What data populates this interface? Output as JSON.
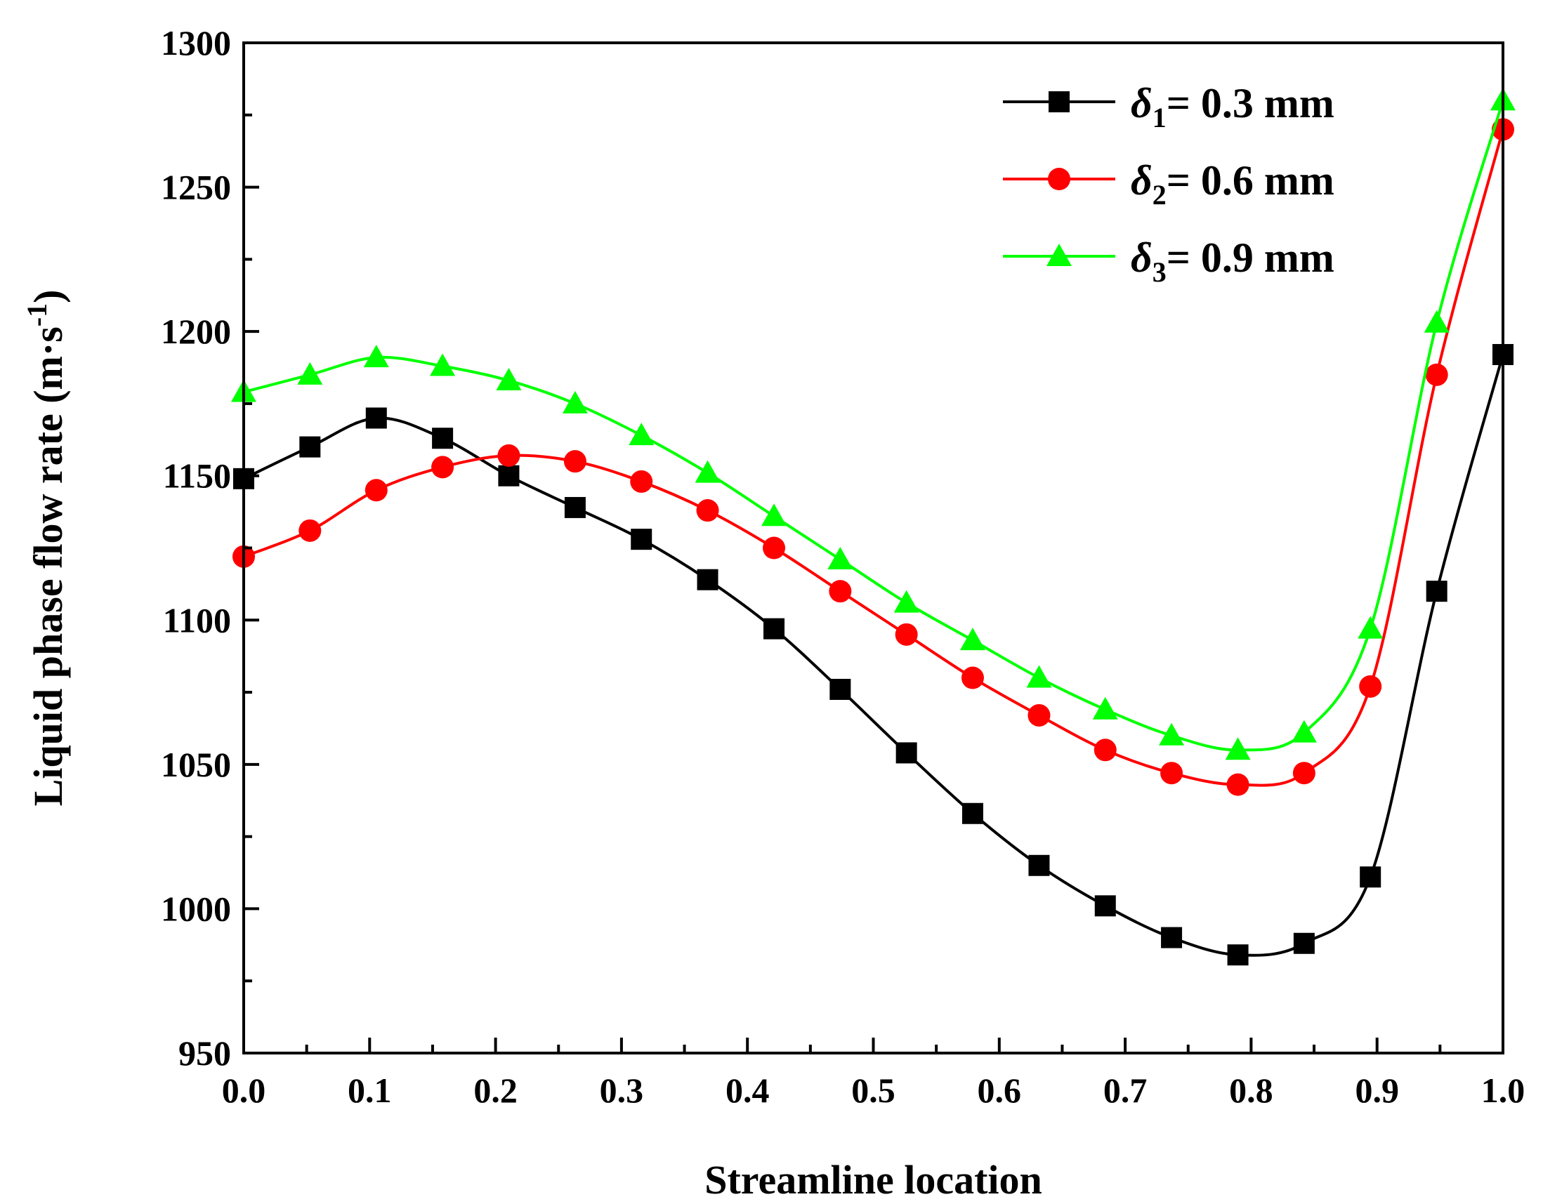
{
  "chart_data": {
    "type": "line",
    "xlabel": "Streamline location",
    "ylabel": {
      "text": "Liquid phase flow rate (m·s",
      "superscript": "-1",
      "close": ")"
    },
    "xlim": [
      0.0,
      1.0
    ],
    "ylim": [
      950,
      1300
    ],
    "xticks": [
      "0.0",
      "0.1",
      "0.2",
      "0.3",
      "0.4",
      "0.5",
      "0.6",
      "0.7",
      "0.8",
      "0.9",
      "1.0"
    ],
    "yticks": [
      "950",
      "1000",
      "1050",
      "1100",
      "1150",
      "1200",
      "1250",
      "1300"
    ],
    "grid": false,
    "legend_position": "top-right",
    "x": [
      0.0,
      0.0526,
      0.1053,
      0.1579,
      0.2105,
      0.2632,
      0.3158,
      0.3684,
      0.4211,
      0.4737,
      0.5263,
      0.5789,
      0.6316,
      0.6842,
      0.7368,
      0.7895,
      0.8421,
      0.8947,
      0.9474,
      1.0
    ],
    "series": [
      {
        "name": "δ1= 0.3 mm",
        "symbol": "δ",
        "subscript": "1",
        "value_text": "= 0.3 mm",
        "color": "#000000",
        "marker": "square",
        "values": [
          1149,
          1160,
          1170,
          1163,
          1150,
          1139,
          1128,
          1114,
          1097,
          1076,
          1054,
          1033,
          1015,
          1001,
          990,
          984,
          988,
          1011,
          1110,
          1192
        ]
      },
      {
        "name": "δ2= 0.6 mm",
        "symbol": "δ",
        "subscript": "2",
        "value_text": "= 0.6 mm",
        "color": "#ff0000",
        "marker": "circle",
        "values": [
          1122,
          1131,
          1145,
          1153,
          1157,
          1155,
          1148,
          1138,
          1125,
          1110,
          1095,
          1080,
          1067,
          1055,
          1047,
          1043,
          1047,
          1077,
          1185,
          1270
        ]
      },
      {
        "name": "δ3= 0.9 mm",
        "symbol": "δ",
        "subscript": "3",
        "value_text": "= 0.9 mm",
        "color": "#00ff00",
        "marker": "triangle",
        "values": [
          1179,
          1185,
          1191,
          1188,
          1183,
          1175,
          1164,
          1151,
          1136,
          1121,
          1106,
          1093,
          1080,
          1069,
          1060,
          1055,
          1061,
          1097,
          1203,
          1280
        ]
      }
    ]
  }
}
